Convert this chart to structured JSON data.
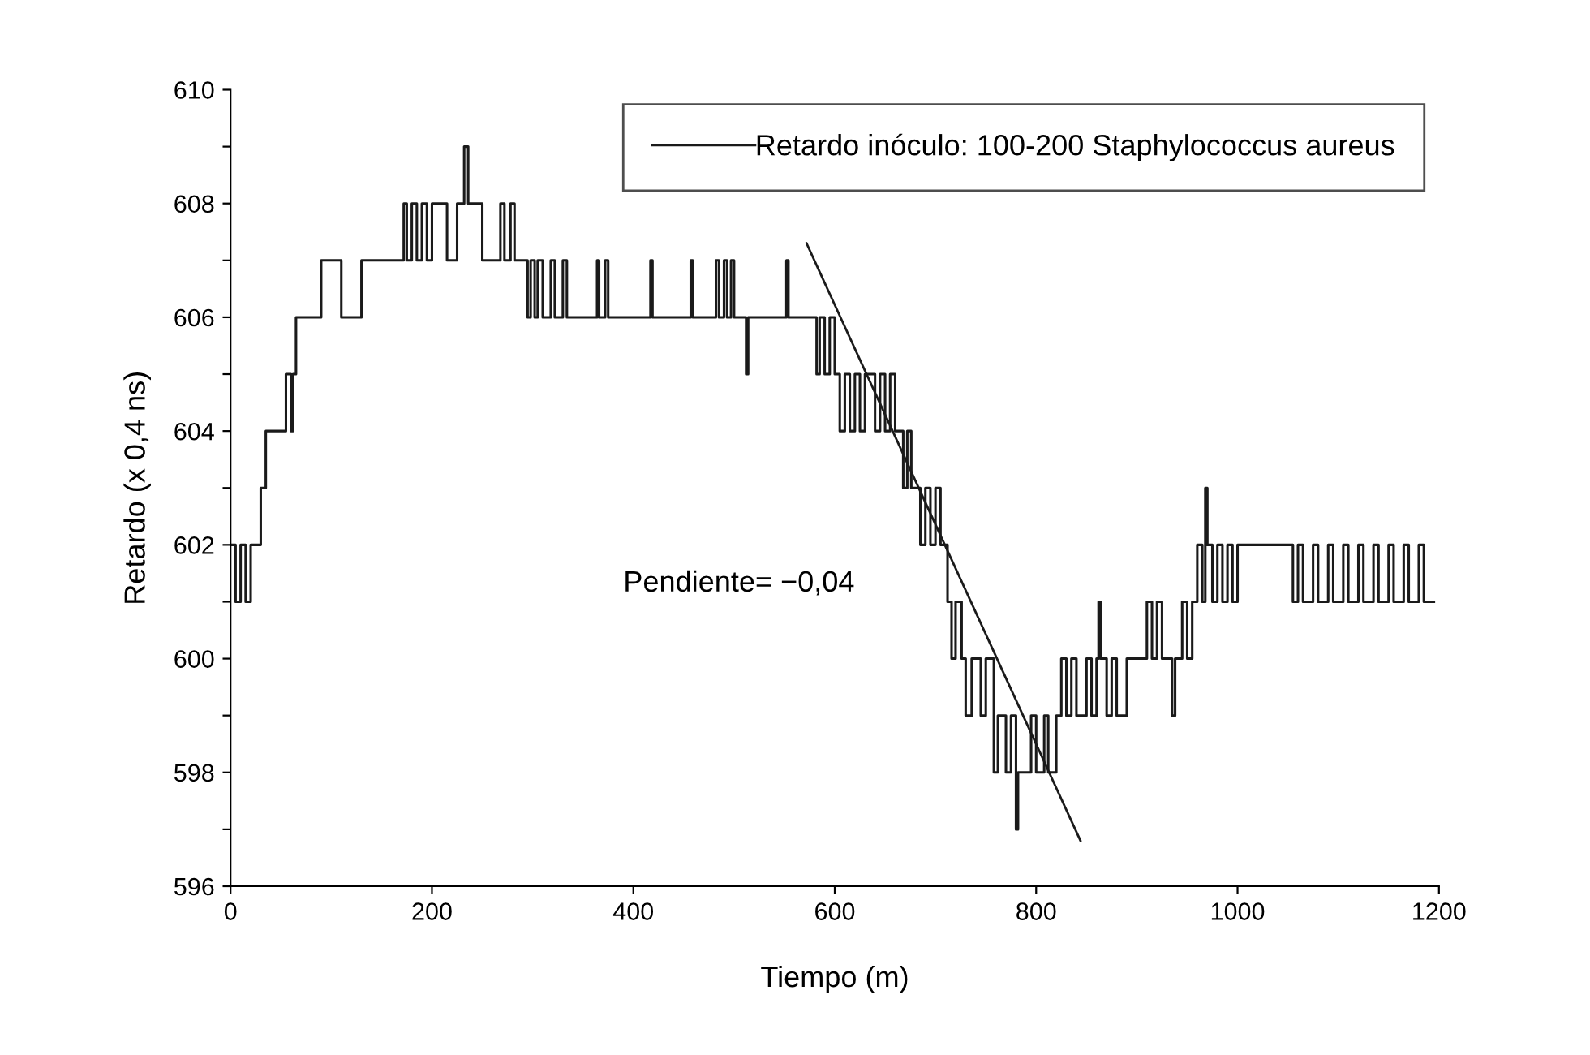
{
  "chart_data": {
    "type": "step",
    "xlabel": "Tiempo (m)",
    "ylabel": "Retardo (x 0,4 ns)",
    "xlim": [
      0,
      1200
    ],
    "xticks": [
      0,
      200,
      400,
      600,
      800,
      1000,
      1200
    ],
    "ylim": [
      596,
      610
    ],
    "yticks": [
      596,
      {
        "value": 597,
        "label": null
      },
      598,
      {
        "value": 599,
        "label": null
      },
      600,
      {
        "value": 601,
        "label": null
      },
      602,
      {
        "value": 603,
        "label": null
      },
      604,
      {
        "value": 605,
        "label": null
      },
      606,
      {
        "value": 607,
        "label": null
      },
      608,
      {
        "value": 609,
        "label": null
      },
      610
    ],
    "grid": false,
    "legend": "top right",
    "annotations": [
      "Pendiente= −0,04"
    ],
    "series": [
      {
        "name": "Retardo inóculo: 100-200 Staphylococcus aureus",
        "color": "#1a1a1a",
        "x": [
          0,
          5,
          10,
          15,
          20,
          30,
          35,
          50,
          55,
          60,
          62,
          65,
          85,
          90,
          105,
          110,
          125,
          130,
          170,
          172,
          175,
          180,
          185,
          190,
          195,
          200,
          210,
          215,
          225,
          232,
          236,
          245,
          250,
          265,
          268,
          272,
          278,
          282,
          290,
          295,
          298,
          302,
          305,
          310,
          318,
          322,
          330,
          334,
          362,
          364,
          366,
          372,
          375,
          415,
          417,
          419,
          455,
          457,
          459,
          480,
          482,
          485,
          490,
          493,
          497,
          500,
          510,
          512,
          514,
          550,
          552,
          554,
          580,
          582,
          585,
          590,
          595,
          600,
          605,
          610,
          615,
          620,
          625,
          630,
          640,
          645,
          650,
          655,
          660,
          668,
          672,
          676,
          685,
          690,
          695,
          700,
          705,
          712,
          716,
          720,
          726,
          730,
          736,
          745,
          750,
          758,
          762,
          770,
          775,
          780,
          782,
          790,
          795,
          800,
          808,
          812,
          820,
          825,
          830,
          835,
          840,
          850,
          855,
          860,
          862,
          864,
          870,
          875,
          880,
          890,
          905,
          910,
          915,
          920,
          925,
          935,
          938,
          945,
          950,
          955,
          960,
          965,
          968,
          970,
          975,
          980,
          985,
          990,
          995,
          1000,
          1050,
          1055,
          1060,
          1065,
          1075,
          1080,
          1090,
          1095,
          1105,
          1110,
          1120,
          1125,
          1135,
          1140,
          1150,
          1155,
          1165,
          1170,
          1180,
          1185,
          1195
        ],
        "values": [
          602,
          601,
          602,
          601,
          602,
          603,
          604,
          604,
          605,
          604,
          605,
          606,
          606,
          607,
          607,
          606,
          606,
          607,
          607,
          608,
          607,
          608,
          607,
          608,
          607,
          608,
          608,
          607,
          608,
          609,
          608,
          608,
          607,
          607,
          608,
          607,
          608,
          607,
          607,
          606,
          607,
          606,
          607,
          606,
          607,
          606,
          607,
          606,
          606,
          607,
          606,
          607,
          606,
          606,
          607,
          606,
          606,
          607,
          606,
          606,
          607,
          606,
          607,
          606,
          607,
          606,
          606,
          605,
          606,
          606,
          607,
          606,
          606,
          605,
          606,
          605,
          606,
          605,
          604,
          605,
          604,
          605,
          604,
          605,
          604,
          605,
          604,
          605,
          604,
          603,
          604,
          603,
          602,
          603,
          602,
          603,
          602,
          601,
          600,
          601,
          600,
          599,
          600,
          599,
          600,
          598,
          599,
          598,
          599,
          597,
          598,
          598,
          599,
          598,
          599,
          598,
          599,
          600,
          599,
          600,
          599,
          600,
          599,
          600,
          601,
          600,
          599,
          600,
          599,
          600,
          600,
          601,
          600,
          601,
          600,
          599,
          600,
          601,
          600,
          601,
          602,
          601,
          603,
          602,
          601,
          602,
          601,
          602,
          601,
          602,
          602,
          601,
          602,
          601,
          602,
          601,
          602,
          601,
          602,
          601,
          602,
          601,
          602,
          601,
          602,
          601,
          602,
          601,
          602,
          601,
          601
        ]
      },
      {
        "color": "#1a1a1a",
        "type": "line",
        "x": [
          572,
          844
        ],
        "values": [
          607.3,
          596.8
        ]
      }
    ]
  }
}
